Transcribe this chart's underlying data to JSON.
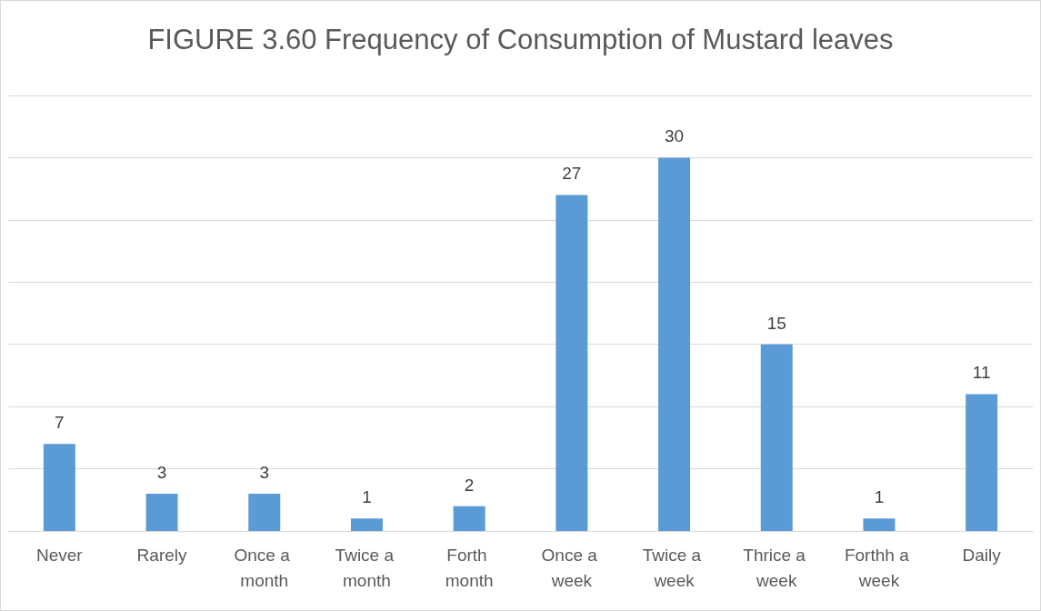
{
  "chart_data": {
    "type": "bar",
    "title": "FIGURE 3.60 Frequency of Consumption of Mustard leaves",
    "categories": [
      "Never",
      "Rarely",
      "Once a month",
      "Twice a month",
      "Forth month",
      "Once a week",
      "Twice a week",
      "Thrice a week",
      "Forthh a week",
      "Daily"
    ],
    "values": [
      7,
      3,
      3,
      1,
      2,
      27,
      30,
      15,
      1,
      11
    ],
    "color": "#5b9bd5",
    "ylim": [
      0,
      35
    ],
    "yticks": [
      {
        "value": 0,
        "label": null
      },
      {
        "value": 5,
        "label": null
      },
      {
        "value": 10,
        "label": null
      },
      {
        "value": 15,
        "label": null
      },
      {
        "value": 20,
        "label": null
      },
      {
        "value": 25,
        "label": null
      },
      {
        "value": 30,
        "label": null
      },
      {
        "value": 35,
        "label": null
      }
    ],
    "tick_labels": "x",
    "grid": "y",
    "data_labels": true
  }
}
